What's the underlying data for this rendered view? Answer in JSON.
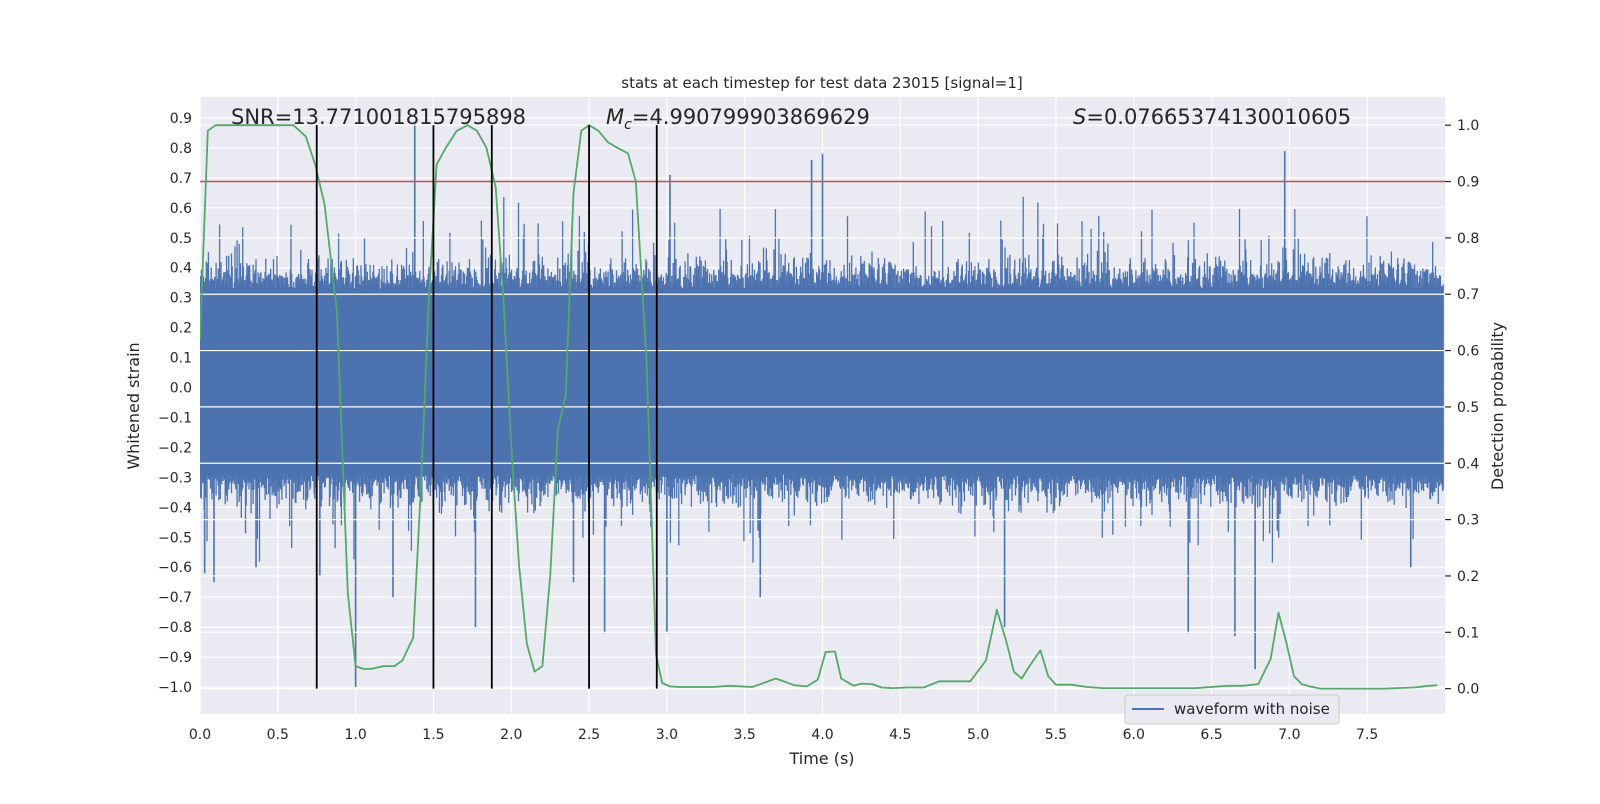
{
  "chart_data": {
    "type": "line",
    "title": "stats at each timestep for test data 23015 [signal=1]",
    "xlabel": "Time (s)",
    "ylabel_left": "Whitened strain",
    "ylabel_right": "Detection probability",
    "xlim": [
      0.0,
      8.0
    ],
    "ylim_left": [
      -1.09,
      0.97
    ],
    "ylim_right": [
      -0.045,
      1.05
    ],
    "x_ticks": [
      0.0,
      0.5,
      1.0,
      1.5,
      2.0,
      2.5,
      3.0,
      3.5,
      4.0,
      4.5,
      5.0,
      5.5,
      6.0,
      6.5,
      7.0,
      7.5
    ],
    "x_tick_labels": [
      "0.0",
      "0.5",
      "1.0",
      "1.5",
      "2.0",
      "2.5",
      "3.0",
      "3.5",
      "4.0",
      "4.5",
      "5.0",
      "5.5",
      "6.0",
      "6.5",
      "7.0",
      "7.5"
    ],
    "y_left_ticks": [
      0.9,
      0.8,
      0.7,
      0.6,
      0.5,
      0.4,
      0.3,
      0.2,
      0.1,
      0.0,
      -0.1,
      -0.2,
      -0.3,
      -0.4,
      -0.5,
      -0.6,
      -0.7,
      -0.8,
      -0.9,
      -1.0
    ],
    "y_left_tick_labels": [
      "0.9",
      "0.8",
      "0.7",
      "0.6",
      "0.5",
      "0.4",
      "0.3",
      "0.2",
      "0.1",
      "0.0",
      "−0.1",
      "−0.2",
      "−0.3",
      "−0.4",
      "−0.5",
      "−0.6",
      "−0.7",
      "−0.8",
      "−0.9",
      "−1.0"
    ],
    "y_right_ticks": [
      1.0,
      0.9,
      0.8,
      0.7,
      0.6,
      0.5,
      0.4,
      0.3,
      0.2,
      0.1,
      0.0
    ],
    "y_right_tick_labels": [
      "1.0",
      "0.9",
      "0.8",
      "0.7",
      "0.6",
      "0.5",
      "0.4",
      "0.3",
      "0.2",
      "0.1",
      "0.0"
    ],
    "grid": true,
    "legend": {
      "placement": "bottom-right",
      "entries": [
        "waveform with noise"
      ]
    },
    "annotations": {
      "snr": "SNR=13.771001815795898",
      "mc_symbol": "M",
      "mc_subscript": "c",
      "mc_value": "=4.990799903869629",
      "s_symbol": "S",
      "s_value": "=0.07665374130010605"
    },
    "threshold_right": 0.9,
    "vertical_markers_x": [
      0.75,
      1.5,
      1.875,
      2.5,
      2.935
    ],
    "series": [
      {
        "name": "waveform with noise",
        "axis": "left",
        "color": "#4c72b0",
        "kind": "noise-band",
        "t_start": 0.0,
        "t_end": 7.99,
        "band_core": [
          -0.29,
          0.33
        ],
        "spikes": [
          {
            "t": 0.03,
            "v": -0.62
          },
          {
            "t": 0.09,
            "v": -0.65
          },
          {
            "t": 0.36,
            "v": -0.6
          },
          {
            "t": 0.77,
            "v": -0.63
          },
          {
            "t": 1.0,
            "v": -1.0
          },
          {
            "t": 1.24,
            "v": -0.7
          },
          {
            "t": 1.38,
            "v": 0.88
          },
          {
            "t": 1.77,
            "v": -0.8
          },
          {
            "t": 2.4,
            "v": -0.65
          },
          {
            "t": 2.6,
            "v": -0.82
          },
          {
            "t": 3.0,
            "v": -0.82
          },
          {
            "t": 3.02,
            "v": 0.71
          },
          {
            "t": 3.6,
            "v": -0.7
          },
          {
            "t": 3.93,
            "v": 0.76
          },
          {
            "t": 4.0,
            "v": 0.78
          },
          {
            "t": 5.17,
            "v": -0.8
          },
          {
            "t": 6.35,
            "v": -0.82
          },
          {
            "t": 6.65,
            "v": -0.83
          },
          {
            "t": 6.78,
            "v": -0.94
          },
          {
            "t": 6.97,
            "v": 0.79
          },
          {
            "t": 7.78,
            "v": -0.6
          }
        ]
      },
      {
        "name": "",
        "axis": "right",
        "color": "#55a868",
        "x": [
          0.0,
          0.05,
          0.1,
          0.2,
          0.3,
          0.4,
          0.5,
          0.6,
          0.68,
          0.74,
          0.8,
          0.88,
          0.95,
          1.0,
          1.05,
          1.1,
          1.18,
          1.25,
          1.3,
          1.37,
          1.42,
          1.47,
          1.52,
          1.58,
          1.65,
          1.72,
          1.78,
          1.84,
          1.9,
          1.95,
          2.0,
          2.05,
          2.1,
          2.15,
          2.2,
          2.25,
          2.3,
          2.35,
          2.4,
          2.45,
          2.5,
          2.56,
          2.62,
          2.68,
          2.75,
          2.8,
          2.87,
          2.93,
          2.97,
          3.02,
          3.07,
          3.12,
          3.2,
          3.3,
          3.4,
          3.55,
          3.7,
          3.82,
          3.9,
          3.97,
          4.02,
          4.08,
          4.12,
          4.2,
          4.25,
          4.32,
          4.38,
          4.45,
          4.55,
          4.65,
          4.75,
          4.85,
          4.95,
          5.05,
          5.12,
          5.18,
          5.23,
          5.28,
          5.33,
          5.4,
          5.45,
          5.5,
          5.55,
          5.6,
          5.7,
          5.8,
          5.9,
          6.0,
          6.2,
          6.4,
          6.6,
          6.7,
          6.8,
          6.88,
          6.93,
          6.98,
          7.03,
          7.08,
          7.13,
          7.2,
          7.3,
          7.45,
          7.6,
          7.8,
          7.9,
          7.95
        ],
        "values": [
          0.62,
          0.99,
          1.0,
          1.0,
          1.0,
          1.0,
          1.0,
          1.0,
          0.98,
          0.93,
          0.86,
          0.67,
          0.17,
          0.04,
          0.035,
          0.035,
          0.04,
          0.04,
          0.05,
          0.09,
          0.36,
          0.69,
          0.93,
          0.96,
          0.99,
          1.0,
          0.99,
          0.96,
          0.89,
          0.69,
          0.43,
          0.22,
          0.08,
          0.03,
          0.04,
          0.2,
          0.46,
          0.52,
          0.88,
          0.99,
          1.0,
          0.99,
          0.97,
          0.96,
          0.95,
          0.9,
          0.58,
          0.06,
          0.01,
          0.004,
          0.003,
          0.003,
          0.003,
          0.003,
          0.005,
          0.003,
          0.018,
          0.006,
          0.004,
          0.016,
          0.065,
          0.066,
          0.018,
          0.005,
          0.009,
          0.008,
          0.002,
          0.001,
          0.002,
          0.002,
          0.013,
          0.013,
          0.013,
          0.05,
          0.14,
          0.085,
          0.03,
          0.018,
          0.04,
          0.068,
          0.022,
          0.007,
          0.007,
          0.007,
          0.003,
          0.001,
          0.001,
          0.001,
          0.001,
          0.001,
          0.005,
          0.005,
          0.008,
          0.053,
          0.135,
          0.082,
          0.022,
          0.008,
          0.004,
          0.0,
          0.0,
          0.0,
          0.0,
          0.002,
          0.005,
          0.006
        ]
      },
      {
        "name": "",
        "axis": "right",
        "color": "#c44e52",
        "kind": "hline",
        "values": [
          0.9
        ]
      }
    ],
    "colors": {
      "plot_bg": "#eaeaf2",
      "grid": "#ffffff",
      "waveform": "#4c72b0",
      "probability": "#55a868",
      "threshold": "#c44e52",
      "markers": "#000000",
      "text": "#262626"
    }
  }
}
